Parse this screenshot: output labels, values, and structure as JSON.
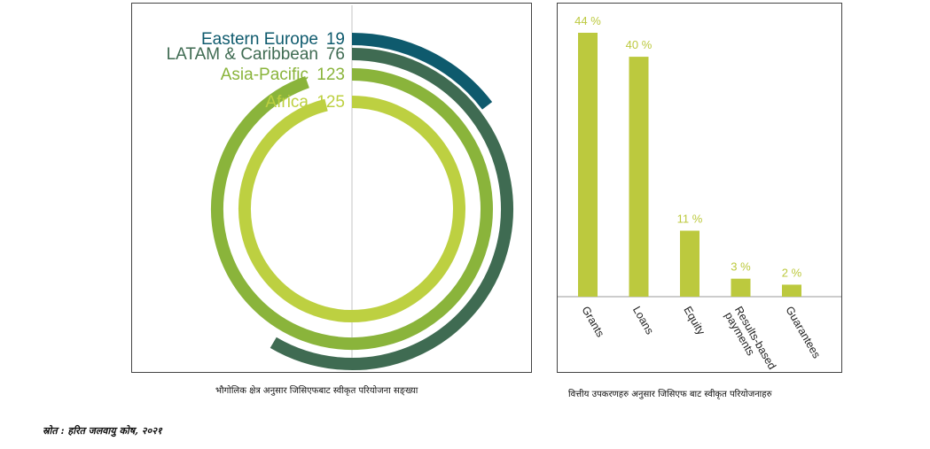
{
  "source_note": "स्रोत : हरित जलवायु कोष, २०२१",
  "chart_data": [
    {
      "type": "radial-bar",
      "caption": "भौगोलिक क्षेत्र अनुसार जिसिएफबाट स्वीकृत परियोजना सङ्ख्या",
      "series": [
        {
          "name": "Eastern Europe",
          "value": 19,
          "color": "#0e5a6d"
        },
        {
          "name": "LATAM & Caribbean",
          "value": 76,
          "color": "#3f6b52"
        },
        {
          "name": "Asia-Pacific",
          "value": 123,
          "color": "#8ab43b"
        },
        {
          "name": "Africa",
          "value": 125,
          "color": "#bdd041"
        }
      ]
    },
    {
      "type": "bar",
      "caption": "वित्तीय उपकरणहरु अनुसार जिसिएफ बाट स्वीकृत परियोजनाहरु",
      "categories": [
        "Grants",
        "Loans",
        "Equity",
        "Results-based payments",
        "Guarantees"
      ],
      "values": [
        44,
        40,
        11,
        3,
        2
      ],
      "value_labels": [
        "44 %",
        "40 %",
        "11 %",
        "3 %",
        "2 %"
      ],
      "color": "#bcc93e",
      "ylim": [
        0,
        44
      ]
    }
  ]
}
